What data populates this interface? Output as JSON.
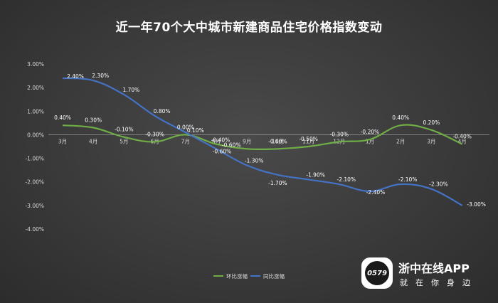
{
  "chart_data": {
    "type": "line",
    "title": "近一年70个大中城市新建商品住宅价格指数变动",
    "categories": [
      "3月",
      "4月",
      "5月",
      "6月",
      "7月",
      "8月",
      "9月",
      "10月",
      "11月",
      "12月",
      "1月",
      "2月",
      "3月",
      "4月"
    ],
    "yticks": [
      "3.00%",
      "2.00%",
      "1.00%",
      "0.00%",
      "-1.00%",
      "-2.00%",
      "-3.00%",
      "-4.00%"
    ],
    "ylim": [
      -4,
      3
    ],
    "grid": false,
    "legend_position": "bottom",
    "series": [
      {
        "name": "环比涨幅",
        "color": "#70ad47",
        "values": [
          0.4,
          0.3,
          -0.1,
          -0.3,
          0.0,
          -0.4,
          -0.6,
          -0.6,
          -0.5,
          -0.3,
          -0.2,
          0.4,
          0.2,
          -0.4
        ],
        "labels": [
          "0.40%",
          "0.30%",
          "-0.10%",
          "-0.30%",
          "0.00%",
          "-0.40%",
          "-0.60%",
          "-0.60%",
          "-0.50%",
          "-0.30%",
          "-0.20%",
          "0.40%",
          "0.20%",
          "-0.40%"
        ]
      },
      {
        "name": "同比涨幅",
        "color": "#4472c4",
        "values": [
          2.4,
          2.3,
          1.7,
          0.8,
          0.1,
          -0.6,
          -1.3,
          -1.7,
          -1.9,
          -2.1,
          -2.4,
          -2.1,
          -2.3,
          -3.0
        ],
        "labels": [
          "2.40%",
          "2.30%",
          "1.70%",
          "0.80%",
          "0.10%",
          "-0.60%",
          "-1.30%",
          "-1.70%",
          "-1.90%",
          "-2.10%",
          "-2.40%",
          "-2.10%",
          "-2.30%",
          "-3.00%"
        ]
      }
    ]
  },
  "watermark": {
    "logo_text": "0579",
    "name": "浙中在线APP",
    "slogan": "就在你身边"
  }
}
